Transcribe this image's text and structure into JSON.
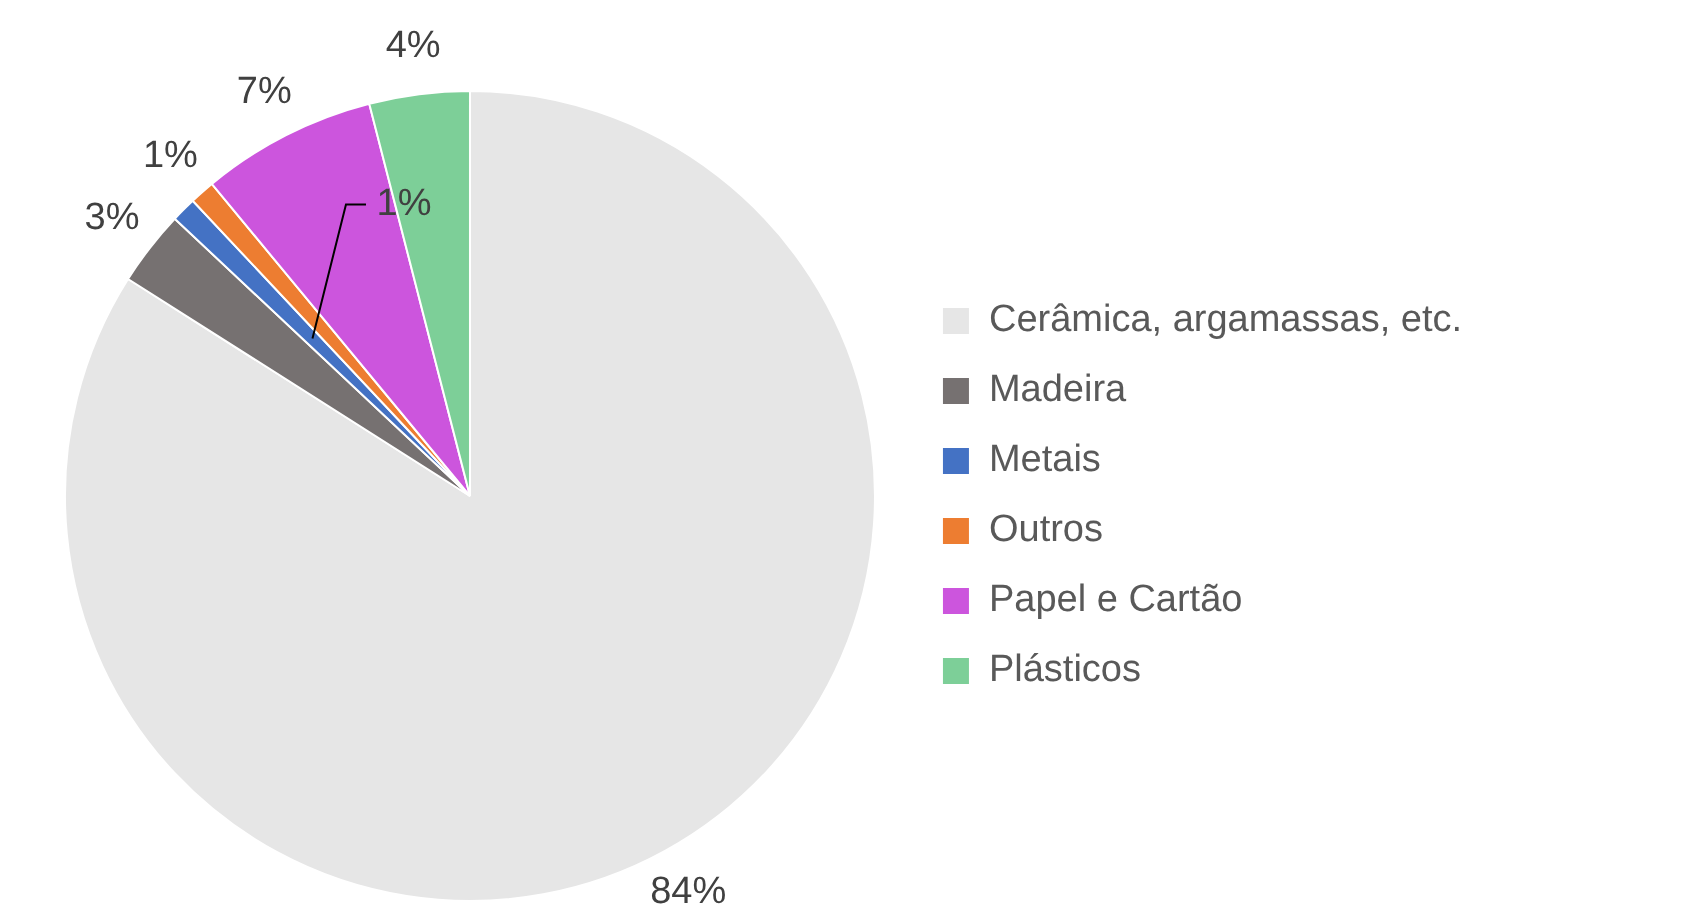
{
  "chart_data": {
    "type": "pie",
    "categories": [
      "Cerâmica, argamassas, etc.",
      "Madeira",
      "Metais",
      "Outros",
      "Papel e Cartão",
      "Plásticos"
    ],
    "values": [
      84,
      3,
      1,
      1,
      7,
      4
    ],
    "colors": [
      "#e6e6e6",
      "#767171",
      "#4472c4",
      "#ed7d31",
      "#cc55dd",
      "#7dcf98"
    ],
    "value_labels": [
      "84%",
      "3%",
      "1%",
      "1%",
      "7%",
      "4%"
    ],
    "legend": "right"
  }
}
